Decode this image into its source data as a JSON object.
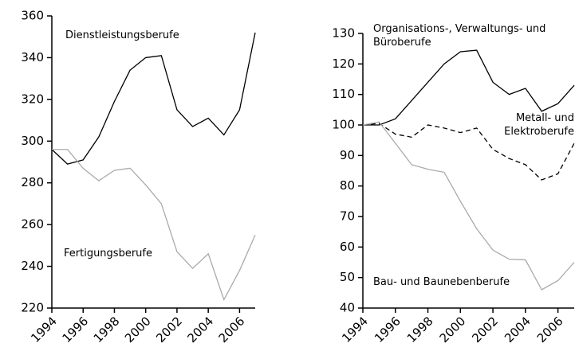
{
  "chart_data": [
    {
      "type": "line",
      "x": [
        1994,
        1995,
        1996,
        1997,
        1998,
        1999,
        2000,
        2001,
        2002,
        2003,
        2004,
        2005,
        2006,
        2007
      ],
      "xlim": [
        1994,
        2007
      ],
      "xticks": [
        1994,
        1996,
        1998,
        2000,
        2002,
        2004,
        2006
      ],
      "ylim": [
        220,
        360
      ],
      "yticks": [
        220,
        240,
        260,
        280,
        300,
        320,
        340,
        360
      ],
      "series": [
        {
          "name": "Dienstleistungsberufe",
          "color": "#000000",
          "dash": false,
          "values": [
            296,
            289,
            291,
            302,
            319,
            334,
            340,
            341,
            315,
            307,
            311,
            303,
            315,
            352
          ]
        },
        {
          "name": "Fertigungsberufe",
          "color": "#aaaaaa",
          "dash": false,
          "values": [
            296,
            296,
            287,
            281,
            286,
            287,
            279,
            270,
            247,
            239,
            246,
            224,
            238,
            255
          ]
        }
      ]
    },
    {
      "type": "line",
      "x": [
        1994,
        1995,
        1996,
        1997,
        1998,
        1999,
        2000,
        2001,
        2002,
        2003,
        2004,
        2005,
        2006,
        2007
      ],
      "xlim": [
        1994,
        2007
      ],
      "xticks": [
        1994,
        1996,
        1998,
        2000,
        2002,
        2004,
        2006
      ],
      "ylim": [
        40,
        130
      ],
      "yticks": [
        40,
        50,
        60,
        70,
        80,
        90,
        100,
        110,
        120,
        130
      ],
      "series": [
        {
          "name": "Organisations-, Verwaltungs- und Büroberufe",
          "color": "#000000",
          "dash": false,
          "values": [
            100,
            100,
            102,
            108,
            114,
            120,
            124,
            124.5,
            114,
            110,
            112,
            104.5,
            107,
            113
          ]
        },
        {
          "name": "Metall- und Elektroberufe",
          "color": "#000000",
          "dash": true,
          "values": [
            100,
            100.5,
            97,
            96,
            100,
            99,
            97.5,
            99,
            92,
            89,
            87,
            82,
            84,
            94
          ]
        },
        {
          "name": "Bau- und Baunebenberufe",
          "color": "#aaaaaa",
          "dash": false,
          "values": [
            100,
            101,
            94,
            87,
            85.5,
            84.5,
            75,
            66,
            59,
            56,
            55.8,
            46,
            49,
            55
          ]
        }
      ]
    }
  ]
}
